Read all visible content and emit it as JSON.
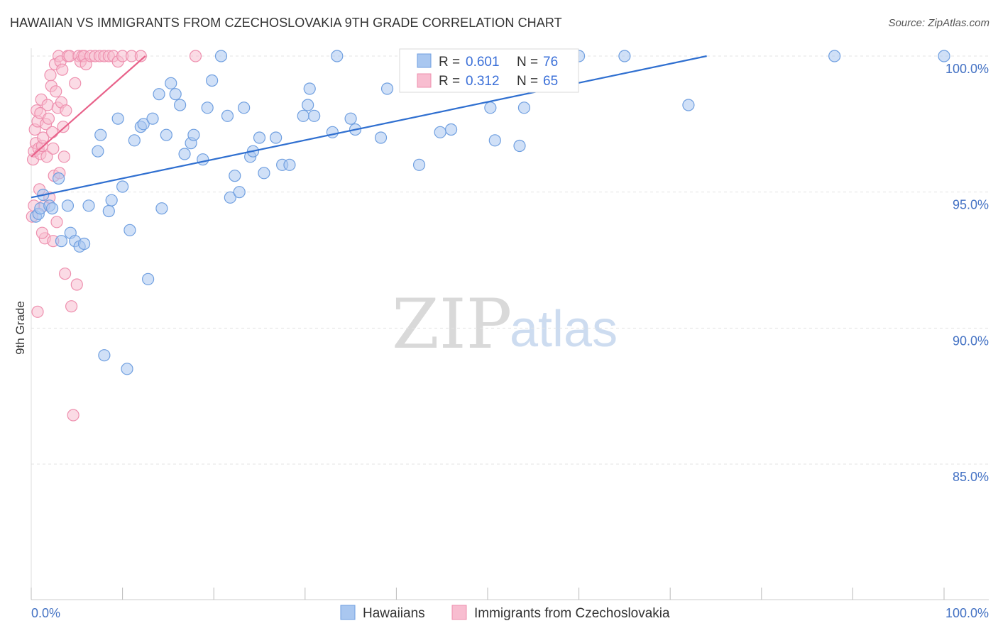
{
  "header": {
    "title": "HAWAIIAN VS IMMIGRANTS FROM CZECHOSLOVAKIA 9TH GRADE CORRELATION CHART",
    "source": "Source: ZipAtlas.com"
  },
  "watermark": {
    "zip": "ZIP",
    "atlas": "atlas"
  },
  "colors": {
    "blue_fill": "#a9c7f0",
    "blue_stroke": "#6f9fe0",
    "blue_line": "#2f6fd0",
    "pink_fill": "#f8bdd0",
    "pink_stroke": "#ee8fae",
    "pink_line": "#e8628a",
    "grid": "#e3e3e3",
    "axis_text": "#4472c4"
  },
  "legend_box": {
    "rows": [
      {
        "r_label": "R =",
        "r_value": "0.601",
        "n_label": "N =",
        "n_value": "76"
      },
      {
        "r_label": "R =",
        "r_value": "0.312",
        "n_label": "N =",
        "n_value": "65"
      }
    ]
  },
  "chart_data": {
    "type": "scatter",
    "title": "HAWAIIAN VS IMMIGRANTS FROM CZECHOSLOVAKIA 9TH GRADE CORRELATION CHART",
    "xlabel": "",
    "ylabel": "9th Grade",
    "xlim": [
      0,
      100
    ],
    "ylim": [
      80.5,
      100.8
    ],
    "x_tick_labels": [
      "0.0%",
      "100.0%"
    ],
    "y_ticks": [
      100,
      95,
      90,
      85
    ],
    "y_tick_labels": [
      "100.0%",
      "95.0%",
      "90.0%",
      "85.0%"
    ],
    "grid": true,
    "legend_position": "bottom",
    "series": [
      {
        "name": "Hawaiians",
        "r": 0.601,
        "n": 76,
        "trend": {
          "x": [
            0,
            74
          ],
          "y": [
            94.8,
            100
          ]
        },
        "points": [
          [
            0.5,
            94.1
          ],
          [
            0.8,
            94.2
          ],
          [
            1.0,
            94.4
          ],
          [
            1.3,
            94.9
          ],
          [
            2.0,
            94.5
          ],
          [
            2.3,
            94.4
          ],
          [
            3.0,
            95.5
          ],
          [
            3.3,
            93.2
          ],
          [
            4.0,
            94.5
          ],
          [
            4.3,
            93.5
          ],
          [
            4.8,
            93.2
          ],
          [
            5.3,
            93.0
          ],
          [
            5.8,
            93.1
          ],
          [
            6.3,
            94.5
          ],
          [
            7.3,
            96.5
          ],
          [
            7.6,
            97.1
          ],
          [
            8.0,
            89.0
          ],
          [
            8.5,
            94.3
          ],
          [
            8.8,
            94.7
          ],
          [
            9.5,
            97.7
          ],
          [
            10.0,
            95.2
          ],
          [
            10.5,
            88.5
          ],
          [
            10.8,
            93.6
          ],
          [
            11.3,
            96.9
          ],
          [
            12.0,
            97.4
          ],
          [
            12.3,
            97.5
          ],
          [
            12.8,
            91.8
          ],
          [
            13.3,
            97.7
          ],
          [
            14.0,
            98.6
          ],
          [
            14.3,
            94.4
          ],
          [
            14.8,
            97.1
          ],
          [
            15.3,
            99.0
          ],
          [
            15.8,
            98.6
          ],
          [
            16.3,
            98.2
          ],
          [
            16.8,
            96.4
          ],
          [
            17.5,
            96.8
          ],
          [
            17.8,
            97.1
          ],
          [
            18.8,
            96.2
          ],
          [
            19.3,
            98.1
          ],
          [
            19.8,
            99.1
          ],
          [
            20.8,
            100.0
          ],
          [
            21.5,
            97.8
          ],
          [
            21.8,
            94.8
          ],
          [
            22.3,
            95.6
          ],
          [
            22.8,
            95.0
          ],
          [
            23.3,
            98.1
          ],
          [
            24.0,
            96.3
          ],
          [
            24.3,
            96.5
          ],
          [
            25.0,
            97.0
          ],
          [
            25.5,
            95.7
          ],
          [
            26.8,
            97.0
          ],
          [
            27.5,
            96.0
          ],
          [
            28.3,
            96.0
          ],
          [
            29.8,
            97.8
          ],
          [
            30.3,
            98.2
          ],
          [
            30.5,
            98.8
          ],
          [
            31.0,
            97.8
          ],
          [
            33.0,
            97.2
          ],
          [
            33.5,
            100.0
          ],
          [
            35.0,
            97.7
          ],
          [
            35.5,
            97.3
          ],
          [
            38.3,
            97.0
          ],
          [
            39.0,
            98.8
          ],
          [
            42.5,
            96.0
          ],
          [
            44.8,
            97.2
          ],
          [
            46.0,
            97.3
          ],
          [
            49.8,
            100.0
          ],
          [
            50.3,
            98.1
          ],
          [
            50.8,
            96.9
          ],
          [
            53.5,
            96.7
          ],
          [
            54.0,
            98.1
          ],
          [
            60.0,
            100.0
          ],
          [
            65.0,
            100.0
          ],
          [
            72.0,
            98.2
          ],
          [
            88.0,
            100.0
          ],
          [
            100.0,
            100.0
          ]
        ]
      },
      {
        "name": "Immigrants from Czechoslovakia",
        "r": 0.312,
        "n": 65,
        "trend": {
          "x": [
            0,
            12.5
          ],
          "y": [
            96.3,
            100
          ]
        },
        "points": [
          [
            0.1,
            94.1
          ],
          [
            0.2,
            96.2
          ],
          [
            0.3,
            96.5
          ],
          [
            0.4,
            97.3
          ],
          [
            0.5,
            96.8
          ],
          [
            0.6,
            98.0
          ],
          [
            0.7,
            97.6
          ],
          [
            0.8,
            96.6
          ],
          [
            0.9,
            95.1
          ],
          [
            1.0,
            96.4
          ],
          [
            1.0,
            97.9
          ],
          [
            1.1,
            98.4
          ],
          [
            1.2,
            96.7
          ],
          [
            1.3,
            97.0
          ],
          [
            1.4,
            94.5
          ],
          [
            1.5,
            93.3
          ],
          [
            1.6,
            97.5
          ],
          [
            1.7,
            96.3
          ],
          [
            1.8,
            98.2
          ],
          [
            1.9,
            97.7
          ],
          [
            2.0,
            94.8
          ],
          [
            2.1,
            99.3
          ],
          [
            2.2,
            98.9
          ],
          [
            2.3,
            97.2
          ],
          [
            2.4,
            96.6
          ],
          [
            2.5,
            95.6
          ],
          [
            2.6,
            99.7
          ],
          [
            2.7,
            98.7
          ],
          [
            2.8,
            93.9
          ],
          [
            2.9,
            98.1
          ],
          [
            3.0,
            100.0
          ],
          [
            3.1,
            95.7
          ],
          [
            3.2,
            99.8
          ],
          [
            3.3,
            98.3
          ],
          [
            3.4,
            99.5
          ],
          [
            3.5,
            97.4
          ],
          [
            3.6,
            96.3
          ],
          [
            3.7,
            92.0
          ],
          [
            3.8,
            98.0
          ],
          [
            4.0,
            100.0
          ],
          [
            4.2,
            100.0
          ],
          [
            4.4,
            90.8
          ],
          [
            4.6,
            86.8
          ],
          [
            4.8,
            99.0
          ],
          [
            5.0,
            91.6
          ],
          [
            5.2,
            100.0
          ],
          [
            5.4,
            99.8
          ],
          [
            5.6,
            100.0
          ],
          [
            5.8,
            100.0
          ],
          [
            6.0,
            99.7
          ],
          [
            6.5,
            100.0
          ],
          [
            7.0,
            100.0
          ],
          [
            7.5,
            100.0
          ],
          [
            8.0,
            100.0
          ],
          [
            8.5,
            100.0
          ],
          [
            9.0,
            100.0
          ],
          [
            9.5,
            99.8
          ],
          [
            10.0,
            100.0
          ],
          [
            11.0,
            100.0
          ],
          [
            12.0,
            100.0
          ],
          [
            0.3,
            94.5
          ],
          [
            1.2,
            93.5
          ],
          [
            2.4,
            93.2
          ],
          [
            0.7,
            90.6
          ],
          [
            18.0,
            100.0
          ]
        ]
      }
    ]
  }
}
